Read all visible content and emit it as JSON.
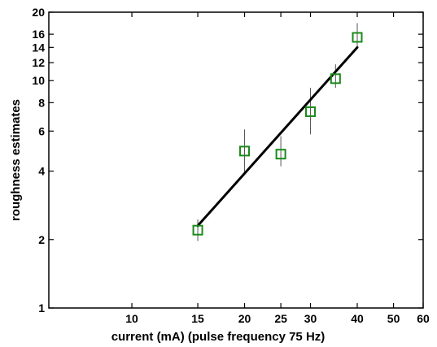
{
  "chart_data": {
    "type": "scatter",
    "xlabel": "current (mA) (pulse frequency 75 Hz)",
    "ylabel": "roughness estimates",
    "xscale": "log",
    "yscale": "log",
    "xlim": [
      6,
      60
    ],
    "ylim": [
      1,
      20
    ],
    "xticks": [
      10,
      15,
      20,
      25,
      30,
      40,
      50,
      60
    ],
    "yticks": [
      1,
      2,
      4,
      6,
      8,
      10,
      12,
      14,
      16,
      20
    ],
    "grid": false,
    "legend": "none",
    "marker": "square",
    "marker_color": "#1a8a1a",
    "fit_color": "#000000",
    "errorbar_color": "#555555",
    "points": [
      {
        "x": 15,
        "y": 2.2,
        "err_low": 1.97,
        "err_high": 2.45
      },
      {
        "x": 20,
        "y": 4.9,
        "err_low": 3.95,
        "err_high": 6.1
      },
      {
        "x": 25,
        "y": 4.75,
        "err_low": 4.2,
        "err_high": 5.7
      },
      {
        "x": 30,
        "y": 7.3,
        "err_low": 5.8,
        "err_high": 9.3
      },
      {
        "x": 35,
        "y": 10.2,
        "err_low": 9.3,
        "err_high": 11.8
      },
      {
        "x": 40,
        "y": 15.5,
        "err_low": 13.8,
        "err_high": 17.9
      }
    ],
    "fit_line": {
      "x": [
        15,
        40
      ],
      "y": [
        2.3,
        14.0
      ]
    }
  }
}
